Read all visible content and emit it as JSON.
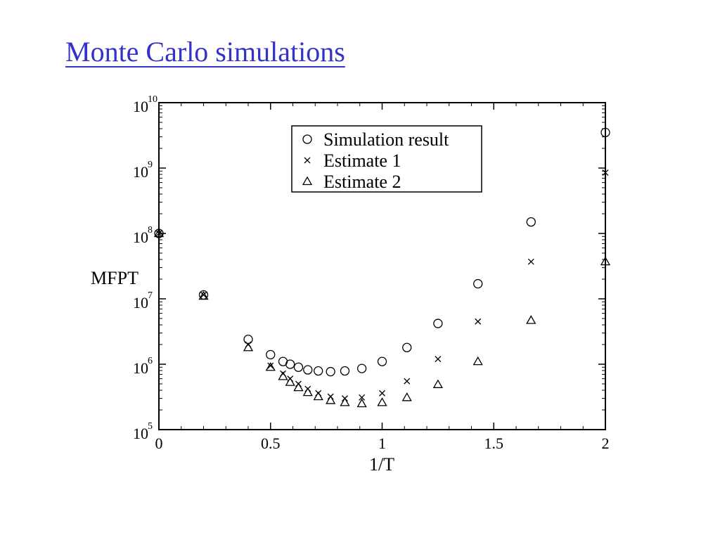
{
  "slide": {
    "title": "Monte Carlo simulations"
  },
  "chart_data": {
    "type": "scatter",
    "title": "",
    "xlabel": "1/T",
    "ylabel": "MFPT",
    "xlim": [
      0,
      2
    ],
    "ylim": [
      100000,
      10000000000
    ],
    "y_scale": "log",
    "grid": false,
    "legend_position": "top-center",
    "x_ticks": [
      {
        "value": 0,
        "label": "0"
      },
      {
        "value": 0.5,
        "label": "0.5"
      },
      {
        "value": 1,
        "label": "1"
      },
      {
        "value": 1.5,
        "label": "1.5"
      },
      {
        "value": 2,
        "label": "2"
      }
    ],
    "y_ticks": [
      {
        "value": 100000,
        "base": "10",
        "exp": "5"
      },
      {
        "value": 1000000,
        "base": "10",
        "exp": "6"
      },
      {
        "value": 10000000,
        "base": "10",
        "exp": "7"
      },
      {
        "value": 100000000,
        "base": "10",
        "exp": "8"
      },
      {
        "value": 1000000000,
        "base": "10",
        "exp": "9"
      },
      {
        "value": 10000000000,
        "base": "10",
        "exp": "10"
      }
    ],
    "series": [
      {
        "name": "Simulation result",
        "marker": "circle",
        "x": [
          0,
          0.2,
          0.4,
          0.5,
          0.556,
          0.588,
          0.625,
          0.667,
          0.714,
          0.769,
          0.833,
          0.909,
          1.0,
          1.111,
          1.25,
          1.429,
          1.667,
          2.0
        ],
        "y": [
          100000000,
          11500000,
          2400000,
          1400000,
          1100000,
          1000000,
          900000,
          820000,
          790000,
          770000,
          790000,
          860000,
          1100000,
          1800000,
          4200000,
          17000000,
          150000000,
          3500000000
        ]
      },
      {
        "name": "Estimate 1",
        "marker": "x",
        "x": [
          0,
          0.2,
          0.4,
          0.5,
          0.556,
          0.588,
          0.625,
          0.667,
          0.714,
          0.769,
          0.833,
          0.909,
          1.0,
          1.111,
          1.25,
          1.429,
          1.667,
          2.0
        ],
        "y": [
          100000000,
          11500000,
          2000000,
          950000,
          720000,
          600000,
          500000,
          420000,
          360000,
          320000,
          300000,
          310000,
          360000,
          550000,
          1200000,
          4500000,
          37000000,
          850000000
        ]
      },
      {
        "name": "Estimate 2",
        "marker": "triangle",
        "x": [
          0,
          0.2,
          0.4,
          0.5,
          0.556,
          0.588,
          0.625,
          0.667,
          0.714,
          0.769,
          0.833,
          0.909,
          1.0,
          1.111,
          1.25,
          1.429,
          1.667,
          2.0
        ],
        "y": [
          100000000,
          11000000,
          1800000,
          900000,
          650000,
          530000,
          440000,
          370000,
          320000,
          280000,
          260000,
          250000,
          260000,
          310000,
          490000,
          1100000,
          4700000,
          37000000
        ]
      }
    ]
  }
}
